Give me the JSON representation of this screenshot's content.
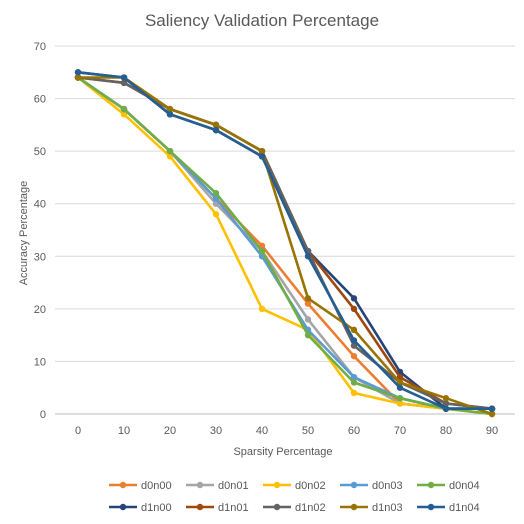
{
  "chart_data": {
    "type": "line",
    "title": "Saliency Validation Percentage",
    "xlabel": "Sparsity Percentage",
    "ylabel": "Accuracy Percentage",
    "x": [
      "0",
      "10",
      "20",
      "30",
      "40",
      "50",
      "60",
      "70",
      "80",
      "90"
    ],
    "ylim": [
      0,
      70
    ],
    "yticks": [
      "0",
      "10",
      "20",
      "30",
      "40",
      "50",
      "60",
      "70"
    ],
    "grid": true,
    "legend_position": "bottom",
    "series": [
      {
        "name": "d0n00",
        "color": "#ED7D31",
        "values": [
          64,
          58,
          50,
          41,
          32,
          21,
          11,
          2,
          1,
          1
        ]
      },
      {
        "name": "d0n01",
        "color": "#A5A5A5",
        "values": [
          64,
          58,
          50,
          40,
          31,
          18,
          7,
          2,
          1,
          1
        ]
      },
      {
        "name": "d0n02",
        "color": "#FFC000",
        "values": [
          64,
          57,
          49,
          38,
          20,
          16,
          4,
          2,
          1,
          0
        ]
      },
      {
        "name": "d0n03",
        "color": "#5B9BD5",
        "values": [
          64,
          58,
          50,
          41,
          30,
          16,
          7,
          3,
          1,
          1
        ]
      },
      {
        "name": "d0n04",
        "color": "#70AD47",
        "values": [
          64,
          58,
          50,
          42,
          31,
          15,
          6,
          3,
          1,
          0
        ]
      },
      {
        "name": "d1n00",
        "color": "#264478",
        "values": [
          65,
          64,
          57,
          54,
          49,
          31,
          22,
          8,
          1,
          1
        ]
      },
      {
        "name": "d1n01",
        "color": "#9E480E",
        "values": [
          64,
          63,
          58,
          55,
          50,
          31,
          20,
          7,
          2,
          1
        ]
      },
      {
        "name": "d1n02",
        "color": "#636363",
        "values": [
          64,
          63,
          58,
          55,
          50,
          31,
          13,
          6,
          2,
          1
        ]
      },
      {
        "name": "d1n03",
        "color": "#997300",
        "values": [
          64,
          64,
          58,
          55,
          50,
          22,
          16,
          6,
          3,
          0
        ]
      },
      {
        "name": "d1n04",
        "color": "#255E91",
        "values": [
          65,
          64,
          57,
          54,
          49,
          30,
          14,
          5,
          1,
          1
        ]
      }
    ]
  }
}
